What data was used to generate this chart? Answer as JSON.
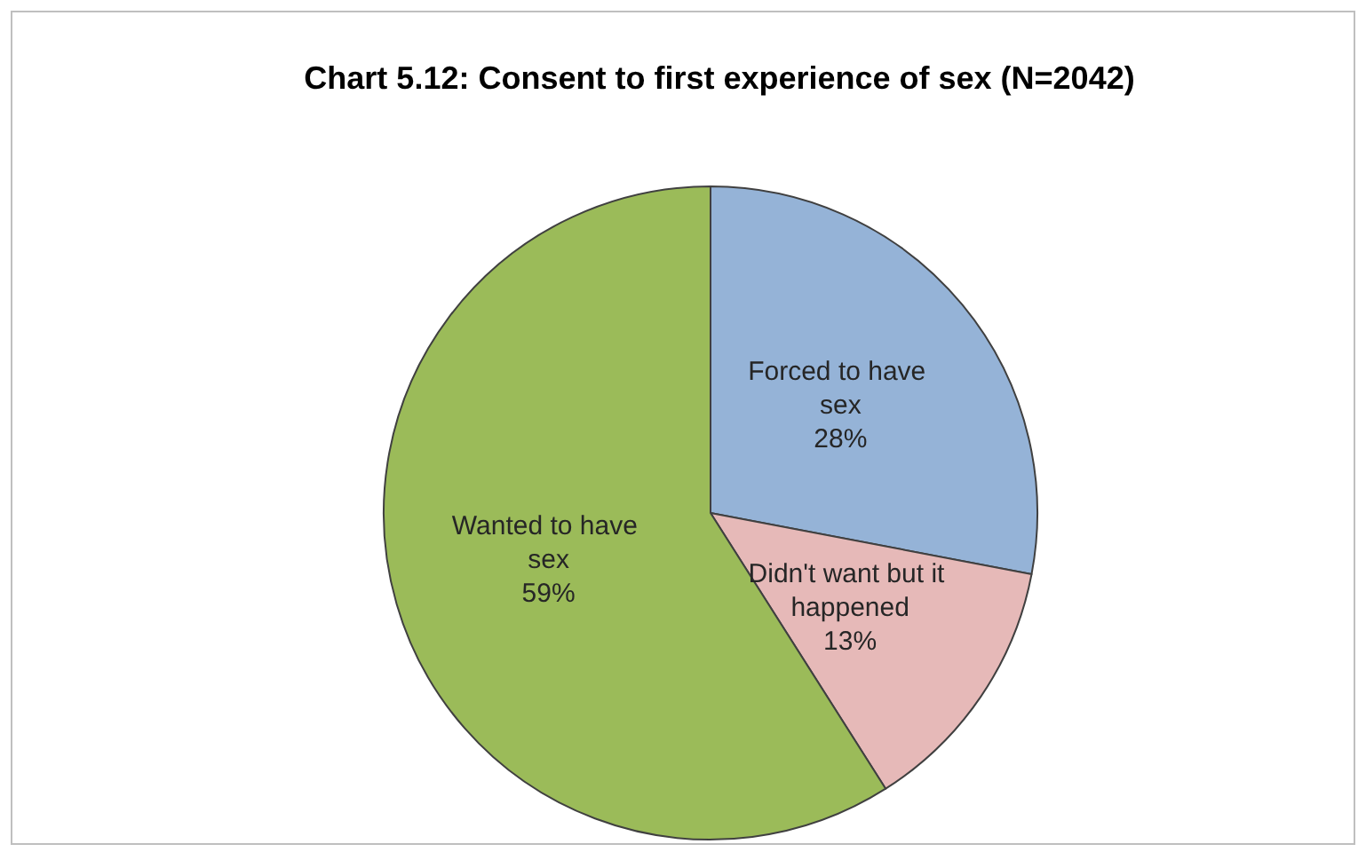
{
  "chart_data": {
    "type": "pie",
    "title": "Chart 5.12: Consent to first experience of sex (N=2042)",
    "categories": [
      "Forced to have sex",
      "Didn't want but it happened",
      "Wanted to have sex"
    ],
    "values": [
      28,
      13,
      59
    ],
    "colors": [
      "#95b3d7",
      "#e6b9b8",
      "#9bbb59"
    ],
    "value_labels": [
      "28%",
      "13%",
      "59%"
    ]
  }
}
